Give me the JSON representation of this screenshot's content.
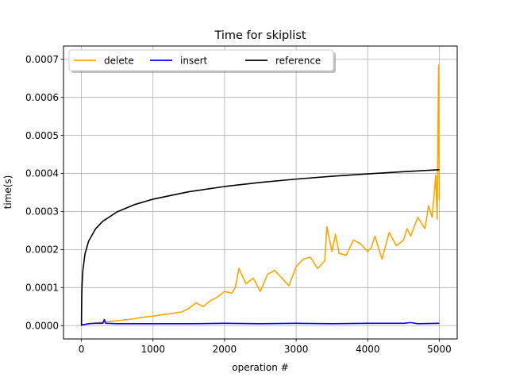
{
  "chart_data": {
    "type": "line",
    "title": "Time for skiplist",
    "xlabel": "operation #",
    "ylabel": "time(s)",
    "xlim": [
      -250,
      5250
    ],
    "ylim": [
      -3.5e-05,
      0.000735
    ],
    "x_ticks": [
      0,
      1000,
      2000,
      3000,
      4000,
      5000
    ],
    "x_tick_labels": [
      "0",
      "1000",
      "2000",
      "3000",
      "4000",
      "5000"
    ],
    "y_ticks": [
      0,
      0.0001,
      0.0002,
      0.0003,
      0.0004,
      0.0005,
      0.0006,
      0.0007
    ],
    "y_tick_labels": [
      "0.0000",
      "0.0001",
      "0.0002",
      "0.0003",
      "0.0004",
      "0.0005",
      "0.0006",
      "0.0007"
    ],
    "grid": true,
    "legend_position": "top-left",
    "series": [
      {
        "name": "delete",
        "color": "#ffa500",
        "x": [
          0,
          100,
          200,
          300,
          400,
          500,
          600,
          700,
          800,
          900,
          1000,
          1100,
          1200,
          1300,
          1400,
          1500,
          1600,
          1700,
          1800,
          1900,
          2000,
          2100,
          2150,
          2200,
          2300,
          2400,
          2500,
          2600,
          2700,
          2800,
          2900,
          3000,
          3100,
          3200,
          3300,
          3400,
          3430,
          3500,
          3550,
          3600,
          3700,
          3800,
          3900,
          4000,
          4050,
          4100,
          4200,
          4300,
          4400,
          4500,
          4550,
          4600,
          4700,
          4800,
          4850,
          4900,
          4950,
          4970,
          4990,
          5000
        ],
        "y": [
          2e-06,
          5e-06,
          7e-06,
          9e-06,
          1.1e-05,
          1.3e-05,
          1.5e-05,
          1.7e-05,
          2e-05,
          2.3e-05,
          2.5e-05,
          2.8e-05,
          3e-05,
          3.3e-05,
          3.6e-05,
          4.5e-05,
          6e-05,
          5e-05,
          6.5e-05,
          7.5e-05,
          9e-05,
          8.5e-05,
          0.0001,
          0.00015,
          0.00011,
          0.000125,
          9e-05,
          0.000135,
          0.000145,
          0.000125,
          0.000105,
          0.000155,
          0.000175,
          0.00018,
          0.00015,
          0.00017,
          0.00026,
          0.000195,
          0.00024,
          0.00019,
          0.000185,
          0.000225,
          0.000215,
          0.000195,
          0.000205,
          0.000235,
          0.000175,
          0.000245,
          0.00021,
          0.000225,
          0.000255,
          0.000235,
          0.000285,
          0.000255,
          0.000315,
          0.000285,
          0.000395,
          0.00028,
          0.000685,
          0.00033
        ]
      },
      {
        "name": "insert",
        "color": "#0000ff",
        "x": [
          0,
          50,
          100,
          200,
          300,
          320,
          340,
          500,
          1000,
          1500,
          2000,
          2500,
          3000,
          3500,
          4000,
          4500,
          4600,
          4700,
          5000
        ],
        "y": [
          2e-06,
          3e-06,
          5e-06,
          6e-06,
          6e-06,
          1.6e-05,
          6e-06,
          5e-06,
          5e-06,
          5e-06,
          6e-06,
          5e-06,
          6e-06,
          5e-06,
          6e-06,
          6e-06,
          8e-06,
          5e-06,
          6e-06
        ]
      },
      {
        "name": "reference",
        "color": "#000000",
        "x": [
          1,
          2,
          5,
          10,
          20,
          50,
          100,
          200,
          300,
          500,
          750,
          1000,
          1500,
          2000,
          2500,
          3000,
          3500,
          4000,
          4500,
          5000
        ],
        "y": [
          0.0,
          3.33e-05,
          7.74e-05,
          0.000111,
          0.0001443,
          0.0001884,
          0.0002217,
          0.000255,
          0.0002745,
          0.0002991,
          0.0003186,
          0.0003324,
          0.0003519,
          0.0003657,
          0.0003765,
          0.0003852,
          0.0003927,
          0.000399,
          0.0004047,
          0.0004098
        ]
      }
    ]
  }
}
